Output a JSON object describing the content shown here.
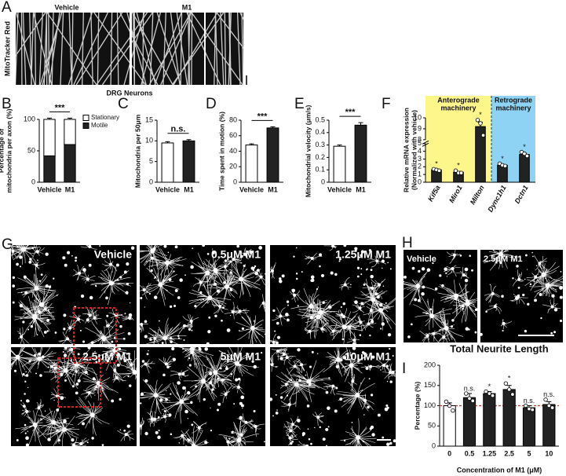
{
  "figure": {
    "panel_letters": [
      "A",
      "B",
      "C",
      "D",
      "E",
      "F",
      "G",
      "H",
      "I"
    ],
    "kymograph": {
      "labels": [
        "Vehicle",
        "M1"
      ],
      "side_label": "MitoTracker Red",
      "caption": "DRG Neurons"
    },
    "neurite_images": {
      "labels": [
        "Vehicle",
        "0.5μM M1",
        "1.25μM M1",
        "2.5μM M1",
        "5μM M1",
        "10μM M1"
      ]
    },
    "zoom_images": {
      "labels": [
        "Vehicle",
        "2.5μM M1"
      ]
    }
  },
  "chart_data": [
    {
      "type": "stacked_bar",
      "categories": [
        "Vehicle",
        "M1"
      ],
      "series": [
        {
          "name": "Motile",
          "color": "#222222",
          "values": [
            42,
            60
          ],
          "errors": [
            2,
            2
          ]
        },
        {
          "name": "Stationary",
          "color": "#ffffff",
          "values": [
            58,
            40
          ],
          "errors": [
            2,
            2
          ]
        }
      ],
      "ylabel": [
        "Percentage of",
        "mitochondria per axon (%)"
      ],
      "ylim": [
        0,
        100
      ],
      "yticks": [
        0,
        50,
        100
      ],
      "significance": "***",
      "legend": "top-right"
    },
    {
      "type": "bar",
      "categories": [
        "Vehicle",
        "M1"
      ],
      "values": [
        9.5,
        10
      ],
      "errors": [
        0.3,
        0.3
      ],
      "colors": [
        "#ffffff",
        "#222222"
      ],
      "ylabel": [
        "Mitochondria per 50μm"
      ],
      "ylim": [
        0,
        15
      ],
      "yticks": [
        0,
        5,
        10,
        15
      ],
      "significance": "n.s."
    },
    {
      "type": "bar",
      "categories": [
        "Vehicle",
        "M1"
      ],
      "values": [
        48,
        70
      ],
      "errors": [
        1.5,
        1.5
      ],
      "colors": [
        "#ffffff",
        "#222222"
      ],
      "ylabel": [
        "Time spent in motion (%)"
      ],
      "ylim": [
        0,
        80
      ],
      "yticks": [
        0,
        20,
        40,
        60,
        80
      ],
      "significance": "***"
    },
    {
      "type": "bar",
      "categories": [
        "Vehicle",
        "M1"
      ],
      "values": [
        0.29,
        0.46
      ],
      "errors": [
        0.01,
        0.02
      ],
      "colors": [
        "#ffffff",
        "#222222"
      ],
      "ylabel": [
        "Mitochondrial velocity (μm/s)"
      ],
      "ylim": [
        0,
        0.5
      ],
      "yticks": [
        0,
        0.1,
        0.2,
        0.3,
        0.4,
        0.5
      ],
      "significance": "***"
    },
    {
      "type": "bar",
      "categories": [
        "Kif5a",
        "Miro1",
        "Milton",
        "Dync1h1",
        "Dctn1"
      ],
      "values": [
        1.6,
        1.3,
        9.2,
        2.2,
        3.6
      ],
      "errors": [
        0.1,
        0.1,
        0.4,
        0.1,
        0.15
      ],
      "points": [
        [
          1.7,
          1.6,
          1.5
        ],
        [
          1.5,
          1.2,
          1.2
        ],
        [
          9.8,
          9.5,
          8.4
        ],
        [
          2.4,
          2.2,
          2.1
        ],
        [
          3.9,
          3.7,
          3.4
        ]
      ],
      "color": "#222222",
      "ylabel": [
        "Relative mRNA expression",
        "(Normalized with vehicle)"
      ],
      "ylim": [
        0,
        10
      ],
      "yticks": [
        0,
        1,
        2,
        3,
        4,
        5,
        8,
        9,
        10
      ],
      "axis_break": [
        5,
        8
      ],
      "annotations": [
        "*",
        "*",
        "*",
        "*",
        "*"
      ],
      "regions": [
        {
          "label": [
            "Anterograde",
            "machinery"
          ],
          "color": "#fdf68a",
          "categories": [
            "Kif5a",
            "Miro1",
            "Milton"
          ]
        },
        {
          "label": [
            "Retrograde",
            "machinery"
          ],
          "color": "#8fd3f4",
          "categories": [
            "Dync1h1",
            "Dctn1"
          ]
        }
      ]
    },
    {
      "type": "bar",
      "title": "Total Neurite Length",
      "categories": [
        "0",
        "0.5",
        "1.25",
        "2.5",
        "5",
        "10"
      ],
      "values": [
        100,
        120,
        130,
        140,
        95,
        103
      ],
      "errors": [
        7,
        10,
        5,
        10,
        5,
        7
      ],
      "points": [
        [
          110,
          100,
          88
        ],
        [
          130,
          118,
          112
        ],
        [
          135,
          130,
          125
        ],
        [
          155,
          140,
          128
        ],
        [
          100,
          92,
          90
        ],
        [
          115,
          100,
          95
        ]
      ],
      "colors": [
        "#ffffff",
        "#222222",
        "#222222",
        "#222222",
        "#222222",
        "#222222"
      ],
      "ylabel": [
        "Percentage (%)"
      ],
      "xlabel": "Concentration of M1 (μM)",
      "ylim": [
        0,
        200
      ],
      "yticks": [
        0,
        50,
        100,
        150,
        200
      ],
      "annotations": [
        null,
        "n.s.",
        "*",
        "*",
        "n.s.",
        "n.s."
      ],
      "reference_line": {
        "value": 100,
        "color": "#c0392b"
      }
    }
  ]
}
